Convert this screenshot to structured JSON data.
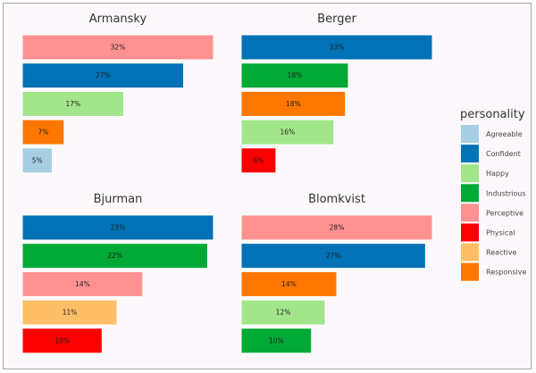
{
  "chart_data": {
    "type": "bar",
    "orientation": "horizontal",
    "facet_scales": "free_x",
    "grid": false,
    "legend": {
      "title": "personality",
      "placement": "right",
      "entries": [
        {
          "name": "Agreeable",
          "color": "#a6cee3"
        },
        {
          "name": "Confident",
          "color": "#0072b5"
        },
        {
          "name": "Happy",
          "color": "#a3e58a"
        },
        {
          "name": "Industrious",
          "color": "#00a835"
        },
        {
          "name": "Perceptive",
          "color": "#ff9191"
        },
        {
          "name": "Physical",
          "color": "#fa0000"
        },
        {
          "name": "Reactive",
          "color": "#ffbf66"
        },
        {
          "name": "Responsive",
          "color": "#ff7700"
        }
      ]
    },
    "facets": [
      {
        "title": "Armansky",
        "bars": [
          {
            "personality": "Perceptive",
            "value": 32,
            "label": "32%"
          },
          {
            "personality": "Confident",
            "value": 27,
            "label": "27%"
          },
          {
            "personality": "Happy",
            "value": 17,
            "label": "17%"
          },
          {
            "personality": "Responsive",
            "value": 7,
            "label": "7%"
          },
          {
            "personality": "Agreeable",
            "value": 5,
            "label": "5%"
          }
        ]
      },
      {
        "title": "Berger",
        "bars": [
          {
            "personality": "Confident",
            "value": 33,
            "label": "33%"
          },
          {
            "personality": "Industrious",
            "value": 18.5,
            "label": "18%"
          },
          {
            "personality": "Responsive",
            "value": 18,
            "label": "18%"
          },
          {
            "personality": "Happy",
            "value": 16,
            "label": "16%"
          },
          {
            "personality": "Physical",
            "value": 6,
            "label": "6%"
          }
        ]
      },
      {
        "title": "Bjurman",
        "bars": [
          {
            "personality": "Confident",
            "value": 23,
            "label": "23%"
          },
          {
            "personality": "Industrious",
            "value": 22.3,
            "label": "22%"
          },
          {
            "personality": "Perceptive",
            "value": 14.5,
            "label": "14%"
          },
          {
            "personality": "Reactive",
            "value": 11.4,
            "label": "11%"
          },
          {
            "personality": "Physical",
            "value": 9.6,
            "label": "10%"
          }
        ]
      },
      {
        "title": "Blomkvist",
        "bars": [
          {
            "personality": "Perceptive",
            "value": 28,
            "label": "28%"
          },
          {
            "personality": "Confident",
            "value": 27,
            "label": "27%"
          },
          {
            "personality": "Responsive",
            "value": 14,
            "label": "14%"
          },
          {
            "personality": "Happy",
            "value": 12.3,
            "label": "12%"
          },
          {
            "personality": "Industrious",
            "value": 10.3,
            "label": "10%"
          }
        ]
      }
    ]
  }
}
